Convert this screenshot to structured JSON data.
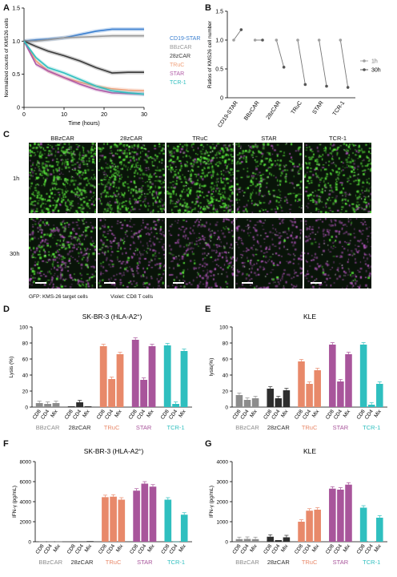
{
  "panels": {
    "A": "A",
    "B": "B",
    "C": "C",
    "D": "D",
    "E": "E",
    "F": "F",
    "G": "G"
  },
  "chart_a": {
    "type": "line",
    "ylabel": "Normalized counts of KMS26 cells",
    "xlabel": "Time (hours)",
    "xlim": [
      0,
      30
    ],
    "ylim": [
      0,
      1.5
    ],
    "xticks": [
      0,
      10,
      20,
      30
    ],
    "yticks": [
      0,
      0.5,
      1.0,
      1.5
    ],
    "ytick_labels": [
      "0",
      "0.5",
      "1.0",
      "1.5"
    ],
    "x": [
      0,
      3,
      6,
      10,
      14,
      18,
      22,
      26,
      30
    ],
    "series": [
      {
        "name": "CD19-STAR",
        "color": "#3a7fd0",
        "values": [
          1.0,
          1.02,
          1.03,
          1.05,
          1.1,
          1.15,
          1.18,
          1.18,
          1.18
        ]
      },
      {
        "name": "BBzCAR",
        "color": "#9a9a9a",
        "values": [
          1.0,
          1.0,
          1.02,
          1.05,
          1.06,
          1.07,
          1.08,
          1.08,
          1.08
        ]
      },
      {
        "name": "28zCAR",
        "color": "#3a3a3a",
        "values": [
          1.0,
          0.92,
          0.85,
          0.78,
          0.7,
          0.6,
          0.52,
          0.53,
          0.53
        ]
      },
      {
        "name": "TRuC",
        "color": "#f0a07a",
        "values": [
          1.0,
          0.7,
          0.55,
          0.45,
          0.38,
          0.32,
          0.28,
          0.26,
          0.25
        ]
      },
      {
        "name": "STAR",
        "color": "#b05aa6",
        "values": [
          1.0,
          0.65,
          0.55,
          0.45,
          0.35,
          0.27,
          0.22,
          0.21,
          0.2
        ]
      },
      {
        "name": "TCR-1",
        "color": "#2fbfbf",
        "values": [
          1.0,
          0.75,
          0.6,
          0.52,
          0.42,
          0.32,
          0.25,
          0.22,
          0.2
        ]
      }
    ]
  },
  "chart_b": {
    "type": "scatter",
    "ylabel": "Ratios of KMS26 cell number",
    "ylim": [
      0,
      1.5
    ],
    "yticks": [
      0,
      0.5,
      1.0,
      1.5
    ],
    "ytick_labels": [
      "0",
      "0.5",
      "1.0",
      "1.5"
    ],
    "categories": [
      "CD19-STAR",
      "BBzCAR",
      "28zCAR",
      "TRuC",
      "STAR",
      "TCR-1"
    ],
    "values_1h": [
      1.0,
      1.0,
      1.0,
      1.0,
      1.0,
      1.0
    ],
    "values_30h": [
      1.18,
      1.0,
      0.53,
      0.23,
      0.2,
      0.18
    ],
    "legend": [
      "1h",
      "30h"
    ],
    "color_1h": "#a0a0a0",
    "color_30h": "#555555"
  },
  "panel_c": {
    "columns": [
      "BBzCAR",
      "28zCAR",
      "TRuC",
      "STAR",
      "TCR-1"
    ],
    "rows": [
      "1h",
      "30h"
    ],
    "caption_gfp": "GFP: KMS-26 target cells",
    "caption_violet": "Violet: CD8 T cells"
  },
  "bar_charts": [
    {
      "id": "D",
      "type": "bar",
      "title": "SK-BR-3 (HLA-A2",
      "title_sup": "+",
      "title_end": ")",
      "ylabel": "Lysis (%)",
      "ylim": [
        0,
        100
      ],
      "yticks": [
        0,
        20,
        40,
        60,
        80,
        100
      ],
      "subcategories": [
        "CD8",
        "CD4",
        "Mix"
      ],
      "groups": [
        {
          "name": "BBzCAR",
          "color": "#8c8c8c",
          "values": [
            5,
            4,
            5
          ]
        },
        {
          "name": "28zCAR",
          "color": "#2e2e2e",
          "values": [
            1,
            6,
            1
          ]
        },
        {
          "name": "TRuC",
          "color": "#e8896a",
          "values": [
            76,
            35,
            66
          ]
        },
        {
          "name": "STAR",
          "color": "#a8559b",
          "values": [
            84,
            34,
            76
          ]
        },
        {
          "name": "TCR-1",
          "color": "#2fbfbf",
          "values": [
            77,
            4,
            70
          ]
        }
      ]
    },
    {
      "id": "E",
      "type": "bar",
      "title": "KLE",
      "title_sup": "",
      "title_end": "",
      "ylabel": "lysis(%)",
      "ylim": [
        0,
        100
      ],
      "yticks": [
        0,
        20,
        40,
        60,
        80,
        100
      ],
      "subcategories": [
        "CD8",
        "CD4",
        "Mix"
      ],
      "groups": [
        {
          "name": "BBzCAR",
          "color": "#8c8c8c",
          "values": [
            15,
            9,
            11
          ]
        },
        {
          "name": "28zCAR",
          "color": "#2e2e2e",
          "values": [
            23,
            11,
            21
          ]
        },
        {
          "name": "TRuC",
          "color": "#e8896a",
          "values": [
            57,
            29,
            46
          ]
        },
        {
          "name": "STAR",
          "color": "#a8559b",
          "values": [
            78,
            32,
            66
          ]
        },
        {
          "name": "TCR-1",
          "color": "#2fbfbf",
          "values": [
            78,
            3,
            29
          ]
        }
      ]
    },
    {
      "id": "F",
      "type": "bar",
      "title": "SK-BR-3 (HLA-A2",
      "title_sup": "+",
      "title_end": ")",
      "ylabel": "IFN-γ (pg/mL)",
      "ylim": [
        0,
        8000
      ],
      "yticks": [
        0,
        2000,
        4000,
        6000,
        8000
      ],
      "subcategories": [
        "CD8",
        "CD4",
        "Mix"
      ],
      "groups": [
        {
          "name": "BBzCAR",
          "color": "#8c8c8c",
          "values": [
            20,
            20,
            20
          ]
        },
        {
          "name": "28zCAR",
          "color": "#2e2e2e",
          "values": [
            20,
            20,
            60
          ]
        },
        {
          "name": "TRuC",
          "color": "#e8896a",
          "values": [
            4450,
            4500,
            4200
          ]
        },
        {
          "name": "STAR",
          "color": "#a8559b",
          "values": [
            5100,
            5800,
            5500
          ]
        },
        {
          "name": "TCR-1",
          "color": "#2fbfbf",
          "values": [
            4200,
            20,
            2700
          ]
        }
      ]
    },
    {
      "id": "G",
      "type": "bar",
      "title": "KLE",
      "title_sup": "",
      "title_end": "",
      "ylabel": "IFN-γ (pg/mL)",
      "ylim": [
        0,
        4000
      ],
      "yticks": [
        0,
        1000,
        2000,
        3000,
        4000
      ],
      "subcategories": [
        "CD8",
        "CD4",
        "Mix"
      ],
      "groups": [
        {
          "name": "BBzCAR",
          "color": "#8c8c8c",
          "values": [
            130,
            140,
            130
          ]
        },
        {
          "name": "28zCAR",
          "color": "#2e2e2e",
          "values": [
            250,
            80,
            220
          ]
        },
        {
          "name": "TRuC",
          "color": "#e8896a",
          "values": [
            1000,
            1550,
            1600
          ]
        },
        {
          "name": "STAR",
          "color": "#a8559b",
          "values": [
            2650,
            2600,
            2850
          ]
        },
        {
          "name": "TCR-1",
          "color": "#2fbfbf",
          "values": [
            1700,
            20,
            1200
          ]
        }
      ]
    }
  ]
}
